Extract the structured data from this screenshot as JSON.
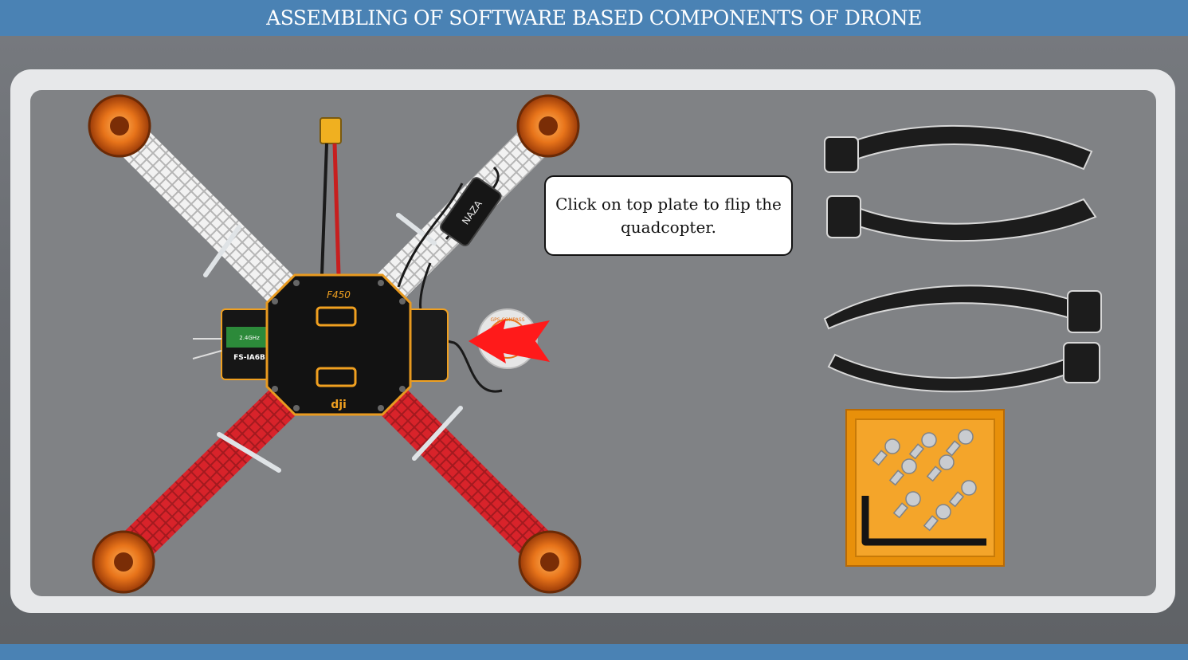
{
  "header": {
    "title": "ASSEMBLING OF SOFTWARE BASED COMPONENTS OF DRONE"
  },
  "instruction": {
    "text": "Click on top plate to flip the quadcopter."
  },
  "drone": {
    "frame_model": "F450",
    "top_plate_brand": "dji",
    "receiver_label": "FS-IA6B",
    "receiver_band": "2.4GHz",
    "flight_controller_label": "NAZA",
    "gps_label": "GPS COMPASS"
  },
  "parts_tray": {
    "landing_gear_count": 4,
    "screw_count": 8,
    "tool": "hex-key"
  },
  "colors": {
    "header": "#4a82b4",
    "stage": "#808285",
    "frame_white": "#f2f2f2",
    "frame_red": "#d8232a",
    "motor_orange": "#e8741a",
    "pointer_arrow": "#ff1a1a",
    "tray_orange": "#e8900a"
  }
}
